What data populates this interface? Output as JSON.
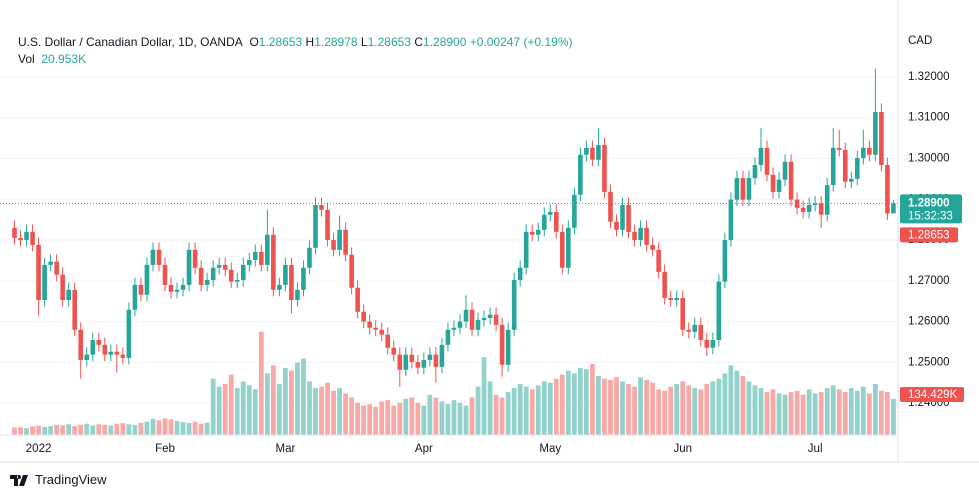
{
  "chart_data": {
    "type": "candlestick",
    "legend": {
      "symbol": "U.S. Dollar / Canadian Dollar, 1D, OANDA",
      "ohlc": [
        {
          "key": "O",
          "value": "1.28653"
        },
        {
          "key": "H",
          "value": "1.28978"
        },
        {
          "key": "L",
          "value": "1.28653"
        },
        {
          "key": "C",
          "value": "1.28900"
        }
      ],
      "change": "+0.00247 (+0.19%)",
      "volume_key": "Vol",
      "volume_value": "20.953K"
    },
    "currency": "CAD",
    "categories": [
      null,
      null,
      null,
      null,
      "2022",
      null,
      null,
      null,
      null,
      null,
      null,
      null,
      null,
      null,
      null,
      null,
      null,
      null,
      null,
      null,
      null,
      null,
      null,
      null,
      null,
      "Feb",
      null,
      null,
      null,
      null,
      null,
      null,
      null,
      null,
      null,
      null,
      null,
      null,
      null,
      null,
      null,
      null,
      null,
      null,
      null,
      "Mar",
      null,
      null,
      null,
      null,
      null,
      null,
      null,
      null,
      null,
      null,
      null,
      null,
      null,
      null,
      null,
      null,
      null,
      null,
      null,
      null,
      null,
      null,
      "Apr",
      null,
      null,
      null,
      null,
      null,
      null,
      null,
      null,
      null,
      null,
      null,
      null,
      null,
      null,
      null,
      null,
      null,
      null,
      null,
      null,
      "May",
      null,
      null,
      null,
      null,
      null,
      null,
      null,
      null,
      null,
      null,
      null,
      null,
      null,
      null,
      null,
      null,
      null,
      null,
      null,
      null,
      null,
      "Jun",
      null,
      null,
      null,
      null,
      null,
      null,
      null,
      null,
      null,
      null,
      null,
      null,
      null,
      null,
      null,
      null,
      null,
      null,
      null,
      null,
      null,
      "Jul",
      null,
      null,
      null,
      null,
      null,
      null,
      null,
      null,
      null,
      null,
      null,
      null,
      null
    ],
    "open": [
      1.283,
      1.2805,
      1.28,
      1.282,
      1.2788,
      1.2653,
      1.2739,
      1.2747,
      1.2715,
      1.2653,
      1.2678,
      1.258,
      1.2506,
      1.2519,
      1.2555,
      1.2543,
      1.2519,
      1.2526,
      1.2519,
      1.2511,
      1.2629,
      1.269,
      1.2666,
      1.2739,
      1.2776,
      1.2739,
      1.269,
      1.2673,
      1.2678,
      1.269,
      1.2776,
      1.2732,
      1.269,
      1.2702,
      1.2732,
      1.2739,
      1.2727,
      1.2698,
      1.2702,
      1.2739,
      1.2751,
      1.2771,
      1.2739,
      1.2813,
      1.2678,
      1.269,
      1.2739,
      1.2653,
      1.2678,
      1.2732,
      1.2781,
      1.2886,
      1.2874,
      1.28,
      1.2776,
      1.2825,
      1.2764,
      1.2683,
      1.2624,
      1.26,
      1.2585,
      1.258,
      1.2568,
      1.2536,
      1.2519,
      1.2482,
      1.2519,
      1.2501,
      1.2487,
      1.2506,
      1.2519,
      1.2489,
      1.2543,
      1.258,
      1.2585,
      1.26,
      1.2629,
      1.258,
      1.2604,
      1.2609,
      1.2617,
      1.2592,
      1.2494,
      1.258,
      1.2702,
      1.2732,
      1.282,
      1.2813,
      1.2825,
      1.2862,
      1.2869,
      1.282,
      1.2732,
      1.283,
      1.2911,
      1.3009,
      1.3026,
      1.2997,
      1.3033,
      1.2918,
      1.2845,
      1.2825,
      1.2886,
      1.282,
      1.28,
      1.283,
      1.2788,
      1.2776,
      1.2722,
      1.2658,
      1.2653,
      1.2658,
      1.258,
      1.2575,
      1.2592,
      1.2555,
      1.2536,
      1.2555,
      1.2698,
      1.28,
      1.2899,
      1.2952,
      1.2899,
      1.2952,
      1.2984,
      1.3026,
      1.296,
      1.2918,
      1.2948,
      1.2992,
      1.2899,
      1.2879,
      1.2869,
      1.2886,
      1.289,
      1.2862,
      1.2935,
      1.3026,
      1.3021,
      1.2943,
      1.295,
      1.3001,
      1.3026,
      1.3009,
      1.3114,
      1.2984,
      1.28653
    ],
    "high": [
      1.2848,
      1.2823,
      1.2838,
      1.2838,
      1.2806,
      1.2757,
      1.2765,
      1.2765,
      1.2733,
      1.2696,
      1.2696,
      1.2598,
      1.2537,
      1.2573,
      1.2573,
      1.2561,
      1.2544,
      1.2544,
      1.2537,
      1.2647,
      1.2708,
      1.2708,
      1.2757,
      1.2794,
      1.2794,
      1.2757,
      1.2708,
      1.2696,
      1.2708,
      1.2794,
      1.2794,
      1.275,
      1.272,
      1.275,
      1.2757,
      1.2757,
      1.2745,
      1.272,
      1.2757,
      1.2769,
      1.2789,
      1.2789,
      1.2875,
      1.2831,
      1.2708,
      1.2757,
      1.2757,
      1.2696,
      1.275,
      1.2799,
      1.2905,
      1.2904,
      1.2892,
      1.2818,
      1.286,
      1.2843,
      1.2782,
      1.2701,
      1.2642,
      1.2618,
      1.2603,
      1.2598,
      1.2586,
      1.2554,
      1.2537,
      1.2537,
      1.2537,
      1.2519,
      1.2524,
      1.2537,
      1.2537,
      1.2561,
      1.2598,
      1.2603,
      1.2618,
      1.2665,
      1.2647,
      1.2622,
      1.2627,
      1.2635,
      1.2635,
      1.261,
      1.2598,
      1.272,
      1.275,
      1.2838,
      1.2838,
      1.2843,
      1.288,
      1.2887,
      1.2887,
      1.2838,
      1.2848,
      1.2929,
      1.3027,
      1.3044,
      1.3044,
      1.3075,
      1.3051,
      1.2936,
      1.2863,
      1.2904,
      1.2904,
      1.2838,
      1.2848,
      1.2848,
      1.2806,
      1.2794,
      1.274,
      1.2676,
      1.2676,
      1.2676,
      1.2598,
      1.261,
      1.261,
      1.2573,
      1.2573,
      1.2716,
      1.2818,
      1.2917,
      1.297,
      1.297,
      1.297,
      1.3002,
      1.3075,
      1.3044,
      1.2978,
      1.2966,
      1.301,
      1.301,
      1.2917,
      1.2897,
      1.2904,
      1.2908,
      1.2908,
      1.2953,
      1.3075,
      1.307,
      1.3039,
      1.2968,
      1.3019,
      1.307,
      1.3044,
      1.322,
      1.3135,
      1.3002,
      1.28978
    ],
    "low": [
      1.2789,
      1.2784,
      1.2784,
      1.2772,
      1.2615,
      1.2637,
      1.2723,
      1.2699,
      1.2637,
      1.2637,
      1.2564,
      1.246,
      1.249,
      1.2503,
      1.2527,
      1.2503,
      1.2503,
      1.2475,
      1.2495,
      1.2495,
      1.2613,
      1.265,
      1.265,
      1.2723,
      1.2723,
      1.2674,
      1.2657,
      1.2657,
      1.2662,
      1.2674,
      1.2716,
      1.2674,
      1.2674,
      1.2686,
      1.2716,
      1.2711,
      1.2682,
      1.2682,
      1.2686,
      1.2723,
      1.2735,
      1.2723,
      1.2723,
      1.2662,
      1.2662,
      1.2674,
      1.262,
      1.2637,
      1.2662,
      1.2716,
      1.2765,
      1.2858,
      1.2784,
      1.276,
      1.276,
      1.2748,
      1.2667,
      1.2608,
      1.2584,
      1.2569,
      1.2564,
      1.2552,
      1.252,
      1.2503,
      1.244,
      1.2466,
      1.2485,
      1.2471,
      1.2471,
      1.249,
      1.245,
      1.2473,
      1.2527,
      1.2564,
      1.2569,
      1.2584,
      1.2564,
      1.2564,
      1.2588,
      1.2593,
      1.2576,
      1.2465,
      1.2478,
      1.2564,
      1.2686,
      1.2716,
      1.2797,
      1.2797,
      1.2809,
      1.2846,
      1.2804,
      1.2716,
      1.2716,
      1.2814,
      1.2895,
      1.2993,
      1.2981,
      1.2981,
      1.2902,
      1.2829,
      1.2809,
      1.2809,
      1.2804,
      1.2784,
      1.2784,
      1.2772,
      1.276,
      1.2706,
      1.2642,
      1.2637,
      1.2637,
      1.2564,
      1.2559,
      1.2559,
      1.2539,
      1.2515,
      1.252,
      1.2539,
      1.2682,
      1.2784,
      1.2883,
      1.2883,
      1.2883,
      1.2936,
      1.2968,
      1.2944,
      1.2902,
      1.2902,
      1.2932,
      1.2883,
      1.2863,
      1.2853,
      1.2853,
      1.287,
      1.283,
      1.2846,
      1.2919,
      1.3005,
      1.2927,
      1.2927,
      1.2934,
      1.2985,
      1.2993,
      1.2993,
      1.2968,
      1.2849,
      1.28653
    ],
    "close": [
      1.2805,
      1.28,
      1.282,
      1.2788,
      1.2653,
      1.2739,
      1.2747,
      1.2715,
      1.2653,
      1.2678,
      1.258,
      1.2506,
      1.2519,
      1.2555,
      1.2543,
      1.2519,
      1.2526,
      1.2519,
      1.2511,
      1.2629,
      1.269,
      1.2666,
      1.2739,
      1.2776,
      1.2739,
      1.269,
      1.2673,
      1.2678,
      1.269,
      1.2776,
      1.2732,
      1.269,
      1.2702,
      1.2732,
      1.2739,
      1.2727,
      1.2698,
      1.2702,
      1.2739,
      1.2751,
      1.2771,
      1.2739,
      1.2813,
      1.2678,
      1.269,
      1.2739,
      1.2653,
      1.2678,
      1.2732,
      1.2781,
      1.2886,
      1.2874,
      1.28,
      1.2776,
      1.2825,
      1.2764,
      1.2683,
      1.2624,
      1.26,
      1.2585,
      1.258,
      1.2568,
      1.2536,
      1.2519,
      1.2482,
      1.2519,
      1.2501,
      1.2487,
      1.2506,
      1.2519,
      1.2489,
      1.2543,
      1.258,
      1.2585,
      1.26,
      1.2629,
      1.258,
      1.2604,
      1.2609,
      1.2617,
      1.2592,
      1.2494,
      1.258,
      1.2702,
      1.2732,
      1.282,
      1.2813,
      1.2825,
      1.2862,
      1.2869,
      1.282,
      1.2732,
      1.283,
      1.2911,
      1.3009,
      1.3026,
      1.2997,
      1.3033,
      1.2918,
      1.2845,
      1.2825,
      1.2886,
      1.282,
      1.28,
      1.283,
      1.2788,
      1.2776,
      1.2722,
      1.2658,
      1.2653,
      1.2658,
      1.258,
      1.2575,
      1.2592,
      1.2555,
      1.2536,
      1.2555,
      1.2698,
      1.28,
      1.2899,
      1.2952,
      1.2899,
      1.2952,
      1.2984,
      1.3026,
      1.296,
      1.2918,
      1.2948,
      1.2992,
      1.2899,
      1.2879,
      1.2869,
      1.2886,
      1.289,
      1.2862,
      1.2935,
      1.3026,
      1.3021,
      1.2943,
      1.295,
      1.3001,
      1.3026,
      1.3009,
      1.3114,
      1.2984,
      1.2865,
      1.289
    ],
    "volume": [
      28,
      30,
      25,
      32,
      35,
      30,
      33,
      38,
      36,
      40,
      34,
      38,
      42,
      36,
      40,
      38,
      35,
      42,
      44,
      40,
      38,
      45,
      50,
      60,
      55,
      62,
      58,
      52,
      48,
      45,
      50,
      42,
      46,
      210,
      180,
      190,
      225,
      175,
      200,
      185,
      170,
      385,
      230,
      260,
      190,
      250,
      240,
      270,
      285,
      200,
      175,
      180,
      195,
      165,
      175,
      155,
      140,
      120,
      110,
      115,
      105,
      125,
      130,
      110,
      120,
      135,
      140,
      120,
      110,
      150,
      140,
      125,
      115,
      130,
      120,
      110,
      140,
      180,
      290,
      200,
      150,
      140,
      160,
      175,
      190,
      180,
      170,
      185,
      200,
      195,
      210,
      225,
      240,
      230,
      250,
      245,
      265,
      220,
      210,
      205,
      215,
      200,
      190,
      180,
      215,
      205,
      195,
      170,
      165,
      180,
      190,
      200,
      185,
      175,
      170,
      190,
      200,
      210,
      230,
      260,
      240,
      220,
      200,
      185,
      175,
      160,
      170,
      155,
      150,
      160,
      165,
      150,
      170,
      155,
      160,
      175,
      185,
      170,
      160,
      175,
      165,
      180,
      155,
      190,
      165,
      160,
      134.429
    ],
    "up_color": "#26a69a",
    "down_color": "#ef5350",
    "up_volume_color": "#93d2cc",
    "down_volume_color": "#f7a9a7",
    "ylim": [
      1.2322,
      1.3315
    ],
    "yticks": [
      {
        "value": 1.24,
        "label": "1.24000"
      },
      {
        "value": 1.25,
        "label": "1.25000"
      },
      {
        "value": 1.26,
        "label": "1.26000"
      },
      {
        "value": 1.27,
        "label": "1.27000"
      },
      {
        "value": 1.28,
        "label": "1.28000"
      },
      {
        "value": 1.29,
        "label": "1.29000"
      },
      {
        "value": 1.3,
        "label": "1.30000"
      },
      {
        "value": 1.31,
        "label": "1.31000"
      },
      {
        "value": 1.32,
        "label": "1.32000"
      }
    ],
    "vlim": [
      0,
      1510
    ],
    "grid": true,
    "last_price": {
      "value": 1.289,
      "label": "1.28900"
    },
    "countdown": "15:32:33",
    "prev_close": {
      "value": 1.28653,
      "label": "1.28653"
    },
    "last_volume": {
      "value": 134.429,
      "label": "134.429K"
    }
  },
  "footer": {
    "brand": "TradingView"
  }
}
